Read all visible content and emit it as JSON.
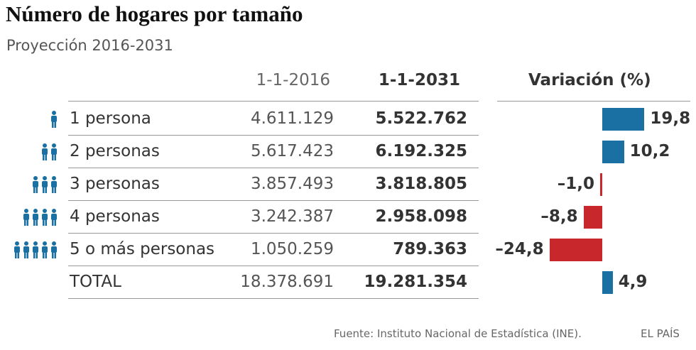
{
  "title": "Número de hogares por tamaño",
  "subtitle": "Proyección 2016-2031",
  "columns": {
    "c2016": "1-1-2016",
    "c2031": "1-1-2031",
    "variation": "Variación (%)"
  },
  "colors": {
    "positive": "#1a6fa3",
    "negative": "#c8272c",
    "icon": "#1a6fa3"
  },
  "chart_data": {
    "type": "table",
    "rows": [
      {
        "label": "1 persona",
        "icons": 1,
        "v2016": "4.611.129",
        "v2031": "5.522.762",
        "variation": 19.8,
        "variation_label": "19,8"
      },
      {
        "label": "2 personas",
        "icons": 2,
        "v2016": "5.617.423",
        "v2031": "6.192.325",
        "variation": 10.2,
        "variation_label": "10,2"
      },
      {
        "label": "3 personas",
        "icons": 3,
        "v2016": "3.857.493",
        "v2031": "3.818.805",
        "variation": -1.0,
        "variation_label": "–1,0"
      },
      {
        "label": "4 personas",
        "icons": 4,
        "v2016": "3.242.387",
        "v2031": "2.958.098",
        "variation": -8.8,
        "variation_label": "–8,8"
      },
      {
        "label": "5  o más personas",
        "icons": 5,
        "v2016": "1.050.259",
        "v2031": "789.363",
        "variation": -24.8,
        "variation_label": "–24,8"
      },
      {
        "label": "TOTAL",
        "icons": 0,
        "v2016": "18.378.691",
        "v2031": "19.281.354",
        "variation": 4.9,
        "variation_label": "4,9"
      }
    ]
  },
  "source": "Fuente: Instituto Nacional de Estadística (INE).",
  "brand": "EL PAÍS"
}
